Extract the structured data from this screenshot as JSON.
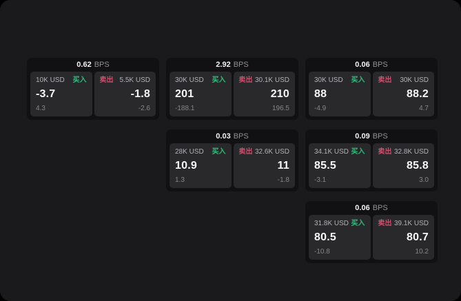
{
  "labels": {
    "bps": "BPS",
    "buy": "买入",
    "sell": "卖出"
  },
  "colors": {
    "buy": "#2ebd7d",
    "sell": "#cd4f6e"
  },
  "cards": [
    {
      "bps": "0.62",
      "buy": {
        "amount": "10K USD",
        "value": "-3.7",
        "sub": "4.3"
      },
      "sell": {
        "amount": "5.5K USD",
        "value": "-1.8",
        "sub": "-2.6"
      }
    },
    {
      "bps": "2.92",
      "buy": {
        "amount": "30K USD",
        "value": "201",
        "sub": "-188.1"
      },
      "sell": {
        "amount": "30.1K USD",
        "value": "210",
        "sub": "196.5"
      }
    },
    {
      "bps": "0.06",
      "buy": {
        "amount": "30K USD",
        "value": "88",
        "sub": "-4.9"
      },
      "sell": {
        "amount": "30K USD",
        "value": "88.2",
        "sub": "4.7"
      }
    },
    {
      "bps": "0.03",
      "buy": {
        "amount": "28K USD",
        "value": "10.9",
        "sub": "1.3"
      },
      "sell": {
        "amount": "32.6K USD",
        "value": "11",
        "sub": "-1.8"
      }
    },
    {
      "bps": "0.09",
      "buy": {
        "amount": "34.1K USD",
        "value": "85.5",
        "sub": "-3.1"
      },
      "sell": {
        "amount": "32.8K USD",
        "value": "85.8",
        "sub": "3.0"
      }
    },
    {
      "bps": "0.06",
      "buy": {
        "amount": "31.8K USD",
        "value": "80.5",
        "sub": "-10.8"
      },
      "sell": {
        "amount": "39.1K USD",
        "value": "80.7",
        "sub": "10.2"
      }
    }
  ]
}
